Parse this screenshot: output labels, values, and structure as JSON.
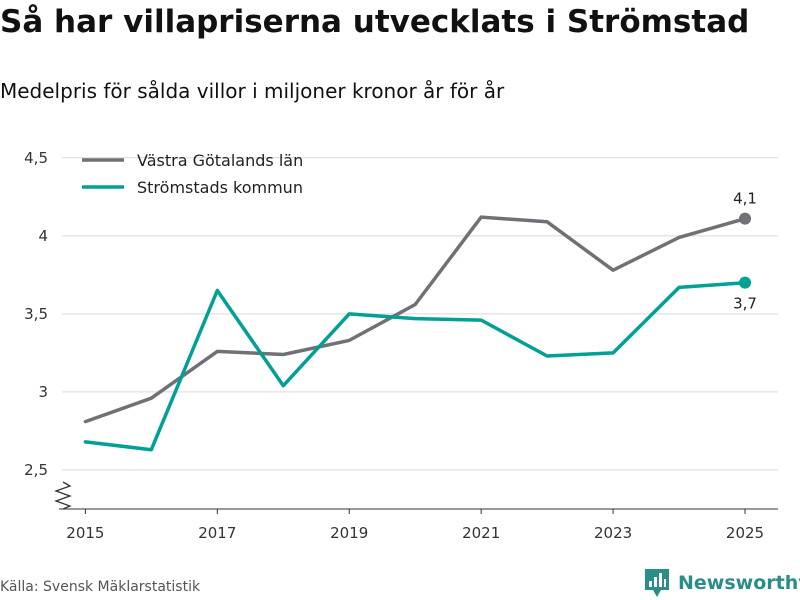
{
  "header": {
    "title": "Så har villapriserna utvecklats i Strömstad",
    "subtitle": "Medelpris för sålda villor i miljoner kronor år för år"
  },
  "footer": {
    "source": "Källa: Svensk Mäklarstatistik",
    "brand": "Newsworthy"
  },
  "colors": {
    "vastra": "#707077",
    "stromstad": "#00a097",
    "grid": "#d9d9d9",
    "axis": "#333333",
    "brand": "#2a8d88"
  },
  "chart_data": {
    "type": "line",
    "x": [
      2015,
      2016,
      2017,
      2018,
      2019,
      2020,
      2021,
      2022,
      2023,
      2024,
      2025
    ],
    "x_tick_labels": [
      "2015",
      "2017",
      "2019",
      "2021",
      "2023",
      "2025"
    ],
    "x_tick_values": [
      2015,
      2017,
      2019,
      2021,
      2023,
      2025
    ],
    "y_tick_values": [
      2.5,
      3,
      3.5,
      4,
      4.5
    ],
    "y_tick_labels": [
      "2,5",
      "3",
      "3,5",
      "4",
      "4,5"
    ],
    "ylim": [
      2.25,
      4.55
    ],
    "xlim": [
      2014.6,
      2025.5
    ],
    "grid": true,
    "legend_position": "top-left",
    "series": [
      {
        "name": "Västra Götalands län",
        "values": [
          2.81,
          2.96,
          3.26,
          3.24,
          3.33,
          3.56,
          4.12,
          4.09,
          3.78,
          3.99,
          4.11
        ],
        "end_label": "4,1"
      },
      {
        "name": "Strömstads kommun",
        "values": [
          2.68,
          2.63,
          3.65,
          3.04,
          3.5,
          3.47,
          3.46,
          3.23,
          3.25,
          3.67,
          3.7
        ],
        "end_label": "3,7"
      }
    ]
  }
}
